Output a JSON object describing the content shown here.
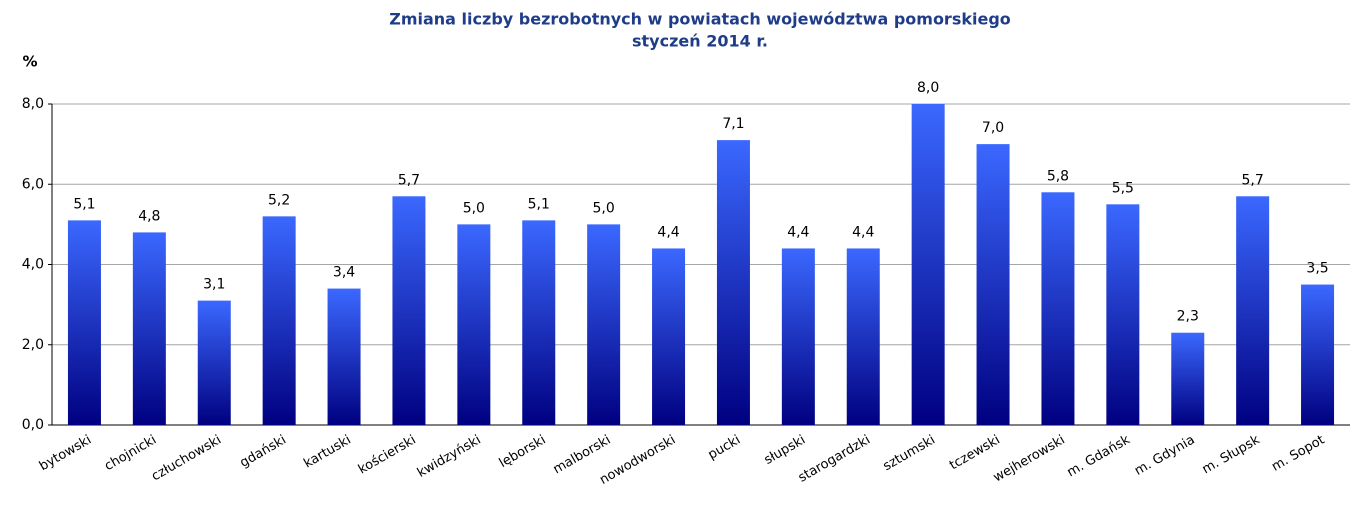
{
  "chart_data": {
    "type": "bar",
    "title": "Zmiana liczby bezrobotnych w  powiatach województwa  pomorskiego",
    "subtitle": "styczeń 2014 r.",
    "y_axis_label": "%",
    "categories": [
      "bytowski",
      "chojnicki",
      "człuchowski",
      "gdański",
      "kartuski",
      "kościerski",
      "kwidzyński",
      "lęborski",
      "malborski",
      "nowodworski",
      "pucki",
      "słupski",
      "starogardzki",
      "sztumski",
      "tczewski",
      "wejherowski",
      "m. Gdańsk",
      "m. Gdynia",
      "m. Słupsk",
      "m. Sopot"
    ],
    "values": [
      5.1,
      4.8,
      3.1,
      5.2,
      3.4,
      5.7,
      5.0,
      5.1,
      5.0,
      4.4,
      7.1,
      4.4,
      4.4,
      8.0,
      7.0,
      5.8,
      5.5,
      2.3,
      5.7,
      3.5
    ],
    "value_labels": [
      "5,1",
      "4,8",
      "3,1",
      "5,2",
      "3,4",
      "5,7",
      "5,0",
      "5,1",
      "5,0",
      "4,4",
      "7,1",
      "4,4",
      "4,4",
      "8,0",
      "7,0",
      "5,8",
      "5,5",
      "2,3",
      "5,7",
      "3,5"
    ],
    "color": [
      "#3b68ff",
      "#000080"
    ],
    "ylim": [
      0,
      8
    ],
    "yticks": [
      {
        "value": 0,
        "label": "0,0"
      },
      {
        "value": 2,
        "label": "2,0"
      },
      {
        "value": 4,
        "label": "4,0"
      },
      {
        "value": 6,
        "label": "6,0"
      },
      {
        "value": 8,
        "label": "8,0"
      }
    ],
    "grid": true
  }
}
